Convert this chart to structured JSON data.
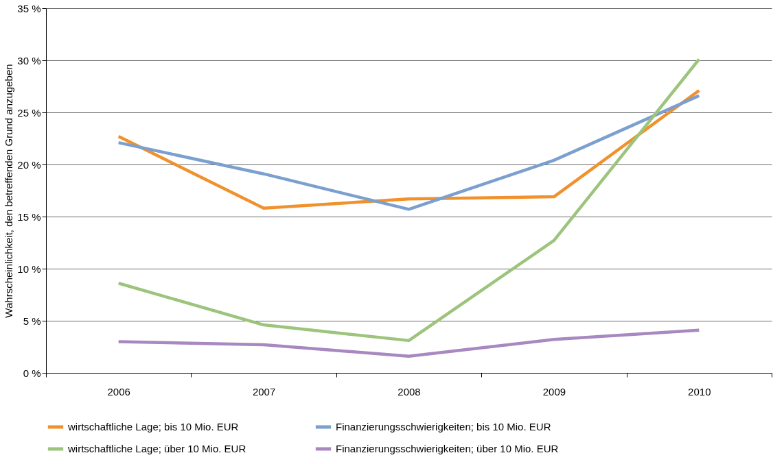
{
  "chart_data": {
    "type": "line",
    "ylabel": "Wahrscheinlichkeit, den betreffenden Grund anzugeben",
    "categories": [
      "2006",
      "2007",
      "2008",
      "2009",
      "2010"
    ],
    "series": [
      {
        "name": "wirtschaftliche Lage; bis 10 Mio. EUR",
        "color": "#f0912c",
        "values": [
          22.7,
          15.8,
          16.7,
          16.9,
          27.1
        ]
      },
      {
        "name": "Finanzierungsschwierigkeiten; bis 10 Mio. EUR",
        "color": "#7b9fcf",
        "values": [
          22.1,
          19.1,
          15.7,
          20.4,
          26.6
        ]
      },
      {
        "name": "wirtschaftliche Lage; über 10 Mio. EUR",
        "color": "#9dc47d",
        "values": [
          8.6,
          4.6,
          3.1,
          12.7,
          30.1
        ]
      },
      {
        "name": "Finanzierungsschwierigkeiten; über 10 Mio. EUR",
        "color": "#a888c0",
        "values": [
          3.0,
          2.7,
          1.6,
          3.2,
          4.1
        ]
      }
    ],
    "ylim": [
      0,
      35
    ],
    "yticks": [
      {
        "value": 0,
        "label": "0 %"
      },
      {
        "value": 5,
        "label": "5 %"
      },
      {
        "value": 10,
        "label": "10 %"
      },
      {
        "value": 15,
        "label": "15 %"
      },
      {
        "value": 20,
        "label": "20 %"
      },
      {
        "value": 25,
        "label": "25 %"
      },
      {
        "value": 30,
        "label": "30 %"
      },
      {
        "value": 35,
        "label": "35 %"
      }
    ],
    "grid": "y",
    "legend": "bottom",
    "marker": "none",
    "line_style": "solid"
  }
}
